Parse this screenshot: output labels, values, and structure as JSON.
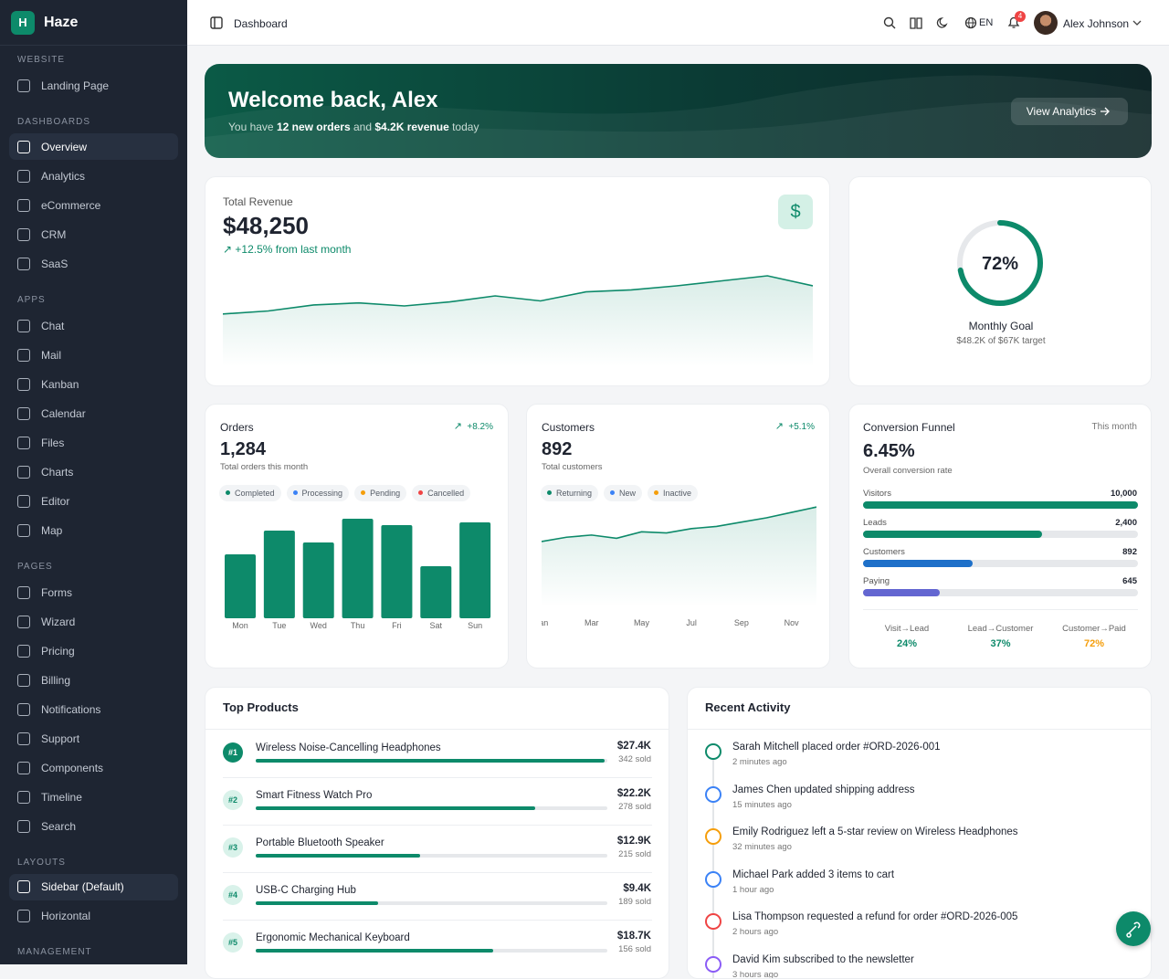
{
  "sidebar": {
    "brand": {
      "logo": "H",
      "name": "Haze"
    },
    "sections": [
      {
        "title": "WEBSITE",
        "items": [
          {
            "label": "Landing Page"
          }
        ]
      },
      {
        "title": "DASHBOARDS",
        "items": [
          {
            "label": "Overview",
            "active": true
          },
          {
            "label": "Analytics"
          },
          {
            "label": "eCommerce"
          },
          {
            "label": "CRM"
          },
          {
            "label": "SaaS"
          }
        ]
      },
      {
        "title": "APPS",
        "items": [
          {
            "label": "Chat"
          },
          {
            "label": "Mail"
          },
          {
            "label": "Kanban"
          },
          {
            "label": "Calendar"
          },
          {
            "label": "Files"
          },
          {
            "label": "Charts"
          },
          {
            "label": "Editor"
          },
          {
            "label": "Map"
          }
        ]
      },
      {
        "title": "PAGES",
        "items": [
          {
            "label": "Forms"
          },
          {
            "label": "Wizard"
          },
          {
            "label": "Pricing"
          },
          {
            "label": "Billing"
          },
          {
            "label": "Notifications"
          },
          {
            "label": "Support"
          },
          {
            "label": "Components"
          },
          {
            "label": "Timeline"
          },
          {
            "label": "Search"
          }
        ]
      },
      {
        "title": "LAYOUTS",
        "items": [
          {
            "label": "Sidebar (Default)",
            "active": true
          },
          {
            "label": "Horizontal"
          }
        ]
      },
      {
        "title": "MANAGEMENT",
        "items": []
      }
    ]
  },
  "header": {
    "title": "Dashboard",
    "language": "EN",
    "notifications": "4",
    "user": "Alex Johnson"
  },
  "banner": {
    "title": "Welcome back, Alex",
    "subtitle": [
      "You have ",
      "12 new orders",
      " and ",
      "$4.2K revenue",
      " today"
    ],
    "button": "View Analytics"
  },
  "revenue": {
    "label": "Total Revenue",
    "value": "$48,250",
    "change": "+12.5% from last month",
    "icon": "$",
    "chart": {
      "type": "area",
      "values": [
        52,
        55,
        61,
        63,
        60,
        64,
        70,
        65,
        74,
        76,
        80,
        85,
        90,
        80
      ],
      "ylim": [
        0,
        100
      ],
      "color": "#0d8a6a"
    }
  },
  "goal": {
    "percent": 72,
    "percent_label": "72%",
    "title": "Monthly Goal",
    "subtitle": "$48.2K of $67K target",
    "color": "#0d8a6a"
  },
  "orders": {
    "title": "Orders",
    "change": "+8.2%",
    "value": "1,284",
    "subtitle": "Total orders this month",
    "legend": [
      {
        "name": "Completed",
        "color": "#0d8a6a"
      },
      {
        "name": "Processing",
        "color": "#3b82f6"
      },
      {
        "name": "Pending",
        "color": "#f59e0b"
      },
      {
        "name": "Cancelled",
        "color": "#ef4444"
      }
    ],
    "chart": {
      "type": "bar",
      "categories": [
        "Mon",
        "Tue",
        "Wed",
        "Thu",
        "Fri",
        "Sat",
        "Sun"
      ],
      "values": [
        70,
        96,
        83,
        109,
        102,
        57,
        105
      ],
      "ylim": [
        0,
        120
      ],
      "color": "#0d8a6a"
    }
  },
  "customers": {
    "title": "Customers",
    "change": "+5.1%",
    "value": "892",
    "subtitle": "Total customers",
    "legend": [
      {
        "name": "Returning",
        "color": "#0d8a6a"
      },
      {
        "name": "New",
        "color": "#3b82f6"
      },
      {
        "name": "Inactive",
        "color": "#f59e0b"
      }
    ],
    "chart": {
      "type": "area",
      "categories": [
        "Jan",
        null,
        "Mar",
        null,
        "May",
        null,
        "Jul",
        null,
        "Sep",
        null,
        "Nov",
        null
      ],
      "values": [
        61,
        65,
        67,
        64,
        70,
        69,
        73,
        75,
        79,
        83,
        88,
        93
      ],
      "ylim": [
        0,
        105
      ],
      "color": "#0d8a6a"
    }
  },
  "funnel": {
    "title": "Conversion Funnel",
    "period": "This month",
    "value": "6.45%",
    "subtitle": "Overall conversion rate",
    "stages": [
      {
        "name": "Visitors",
        "label": "10,000",
        "percent": 100,
        "color": "#0d8a6a"
      },
      {
        "name": "Leads",
        "label": "2,400",
        "percent": 65,
        "color": "#0d8a6a"
      },
      {
        "name": "Customers",
        "label": "892",
        "percent": 40,
        "color": "#1e70c9"
      },
      {
        "name": "Paying",
        "label": "645",
        "percent": 28,
        "color": "#6366d1"
      }
    ],
    "rates": [
      {
        "label": "Visit→Lead",
        "value": "24%",
        "color": "#0d8a6a"
      },
      {
        "label": "Lead→Customer",
        "value": "37%",
        "color": "#0d8a6a"
      },
      {
        "label": "Customer→Paid",
        "value": "72%",
        "color": "#f59e0b"
      }
    ]
  },
  "products": {
    "title": "Top Products",
    "items": [
      {
        "rank": "#1",
        "name": "Wireless Noise-Cancelling Headphones",
        "revenue": "$27.4K",
        "sold": "342 sold",
        "progress": 100
      },
      {
        "rank": "#2",
        "name": "Smart Fitness Watch Pro",
        "revenue": "$22.2K",
        "sold": "278 sold",
        "progress": 80
      },
      {
        "rank": "#3",
        "name": "Portable Bluetooth Speaker",
        "revenue": "$12.9K",
        "sold": "215 sold",
        "progress": 47
      },
      {
        "rank": "#4",
        "name": "USB-C Charging Hub",
        "revenue": "$9.4K",
        "sold": "189 sold",
        "progress": 35
      },
      {
        "rank": "#5",
        "name": "Ergonomic Mechanical Keyboard",
        "revenue": "$18.7K",
        "sold": "156 sold",
        "progress": 68
      }
    ]
  },
  "activity": {
    "title": "Recent Activity",
    "items": [
      {
        "text": "Sarah Mitchell placed order #ORD-2026-001",
        "time": "2 minutes ago",
        "color": "#0d8a6a"
      },
      {
        "text": "James Chen updated shipping address",
        "time": "15 minutes ago",
        "color": "#3b82f6"
      },
      {
        "text": "Emily Rodriguez left a 5-star review on Wireless Headphones",
        "time": "32 minutes ago",
        "color": "#f59e0b"
      },
      {
        "text": "Michael Park added 3 items to cart",
        "time": "1 hour ago",
        "color": "#3b82f6"
      },
      {
        "text": "Lisa Thompson requested a refund for order #ORD-2026-005",
        "time": "2 hours ago",
        "color": "#ef4444"
      },
      {
        "text": "David Kim subscribed to the newsletter",
        "time": "3 hours ago",
        "color": "#8b5cf6"
      }
    ]
  }
}
